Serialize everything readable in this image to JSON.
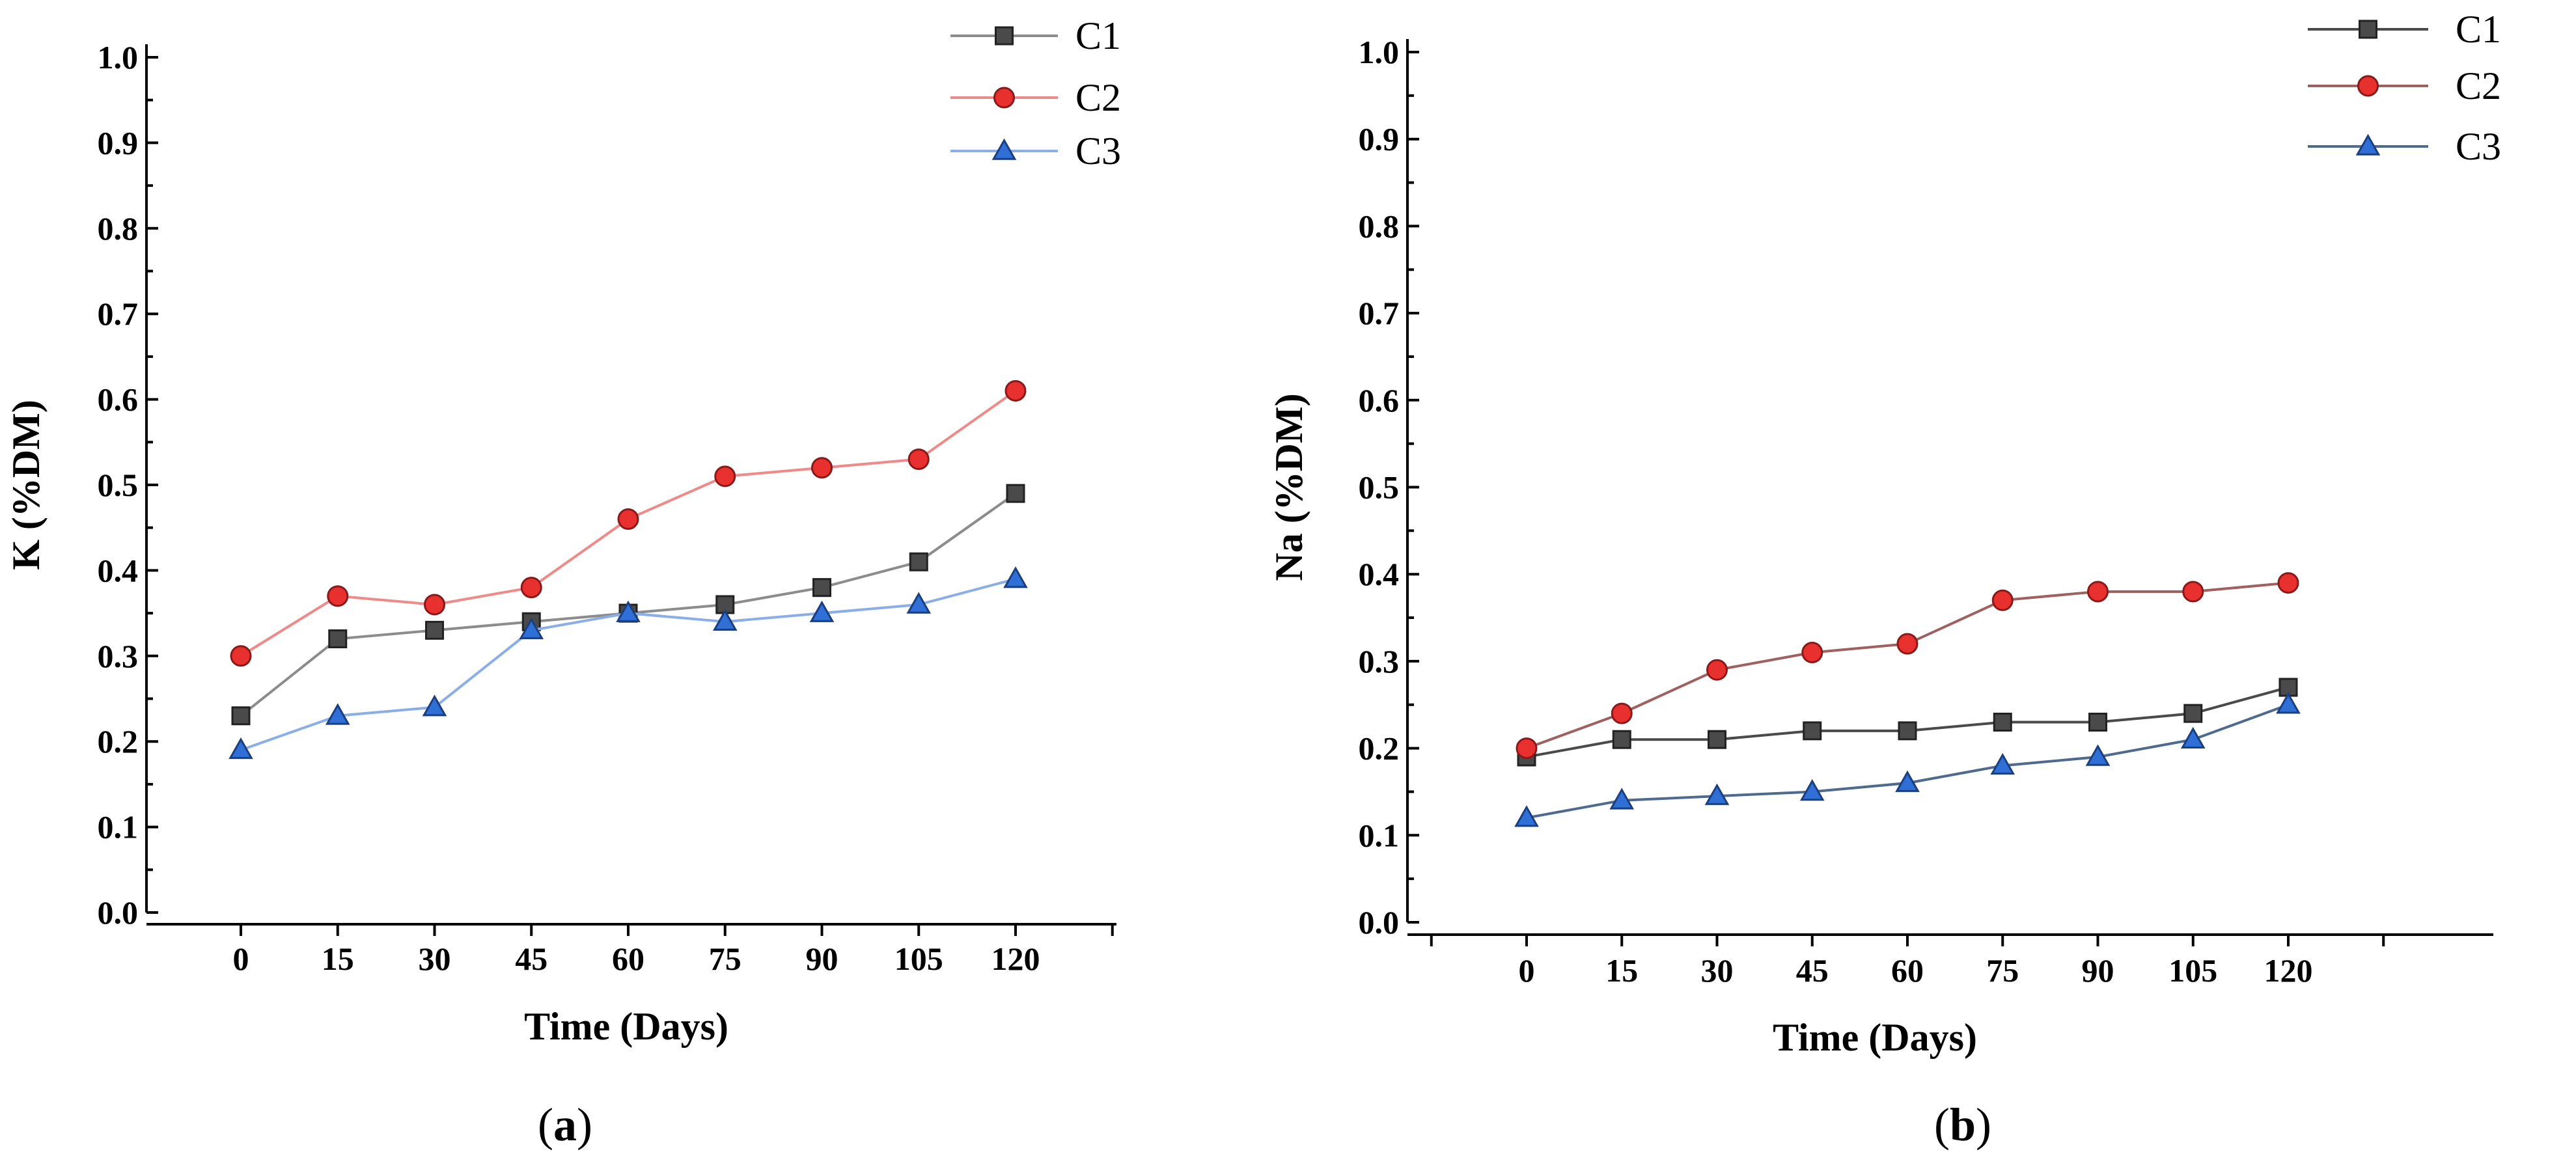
{
  "chart_data": [
    {
      "type": "line",
      "panel": "(a)",
      "panel_letter": "a",
      "xlabel": "Time (Days)",
      "ylabel": "K (%DM)",
      "x": [
        0,
        15,
        30,
        45,
        60,
        75,
        90,
        105,
        120
      ],
      "ylim": [
        0.0,
        1.0
      ],
      "yticks": [
        "0.0",
        "0.1",
        "0.2",
        "0.3",
        "0.4",
        "0.5",
        "0.6",
        "0.7",
        "0.8",
        "0.9",
        "1.0"
      ],
      "legend_position": "top-right",
      "grid": false,
      "series": [
        {
          "name": "C1",
          "marker": "square",
          "color": "#4a4a4a",
          "line_color": "#8c8c8c",
          "values": [
            0.23,
            0.32,
            0.33,
            0.34,
            0.35,
            0.36,
            0.38,
            0.41,
            0.49
          ]
        },
        {
          "name": "C2",
          "marker": "circle",
          "color": "#e8312f",
          "line_color": "#f08a88",
          "values": [
            0.3,
            0.37,
            0.36,
            0.38,
            0.46,
            0.51,
            0.52,
            0.53,
            0.61
          ]
        },
        {
          "name": "C3",
          "marker": "triangle",
          "color": "#2f6fd6",
          "line_color": "#8aaee8",
          "values": [
            0.19,
            0.23,
            0.24,
            0.33,
            0.35,
            0.34,
            0.35,
            0.36,
            0.39
          ]
        }
      ]
    },
    {
      "type": "line",
      "panel": "(b)",
      "panel_letter": "b",
      "xlabel": "Time (Days)",
      "ylabel": "Na (%DM)",
      "x": [
        0,
        15,
        30,
        45,
        60,
        75,
        90,
        105,
        120
      ],
      "ylim": [
        0.0,
        1.0
      ],
      "yticks": [
        "0.0",
        "0.1",
        "0.2",
        "0.3",
        "0.4",
        "0.5",
        "0.6",
        "0.7",
        "0.8",
        "0.9",
        "1.0"
      ],
      "legend_position": "top-right",
      "grid": false,
      "series": [
        {
          "name": "C1",
          "marker": "square",
          "color": "#4a4a4a",
          "line_color": "#4a4a4a",
          "values": [
            0.19,
            0.21,
            0.21,
            0.22,
            0.22,
            0.23,
            0.23,
            0.24,
            0.27
          ]
        },
        {
          "name": "C2",
          "marker": "circle",
          "color": "#e8312f",
          "line_color": "#a06060",
          "values": [
            0.2,
            0.24,
            0.29,
            0.31,
            0.32,
            0.37,
            0.38,
            0.38,
            0.39
          ]
        },
        {
          "name": "C3",
          "marker": "triangle",
          "color": "#2f6fd6",
          "line_color": "#4f6a8f",
          "values": [
            0.12,
            0.14,
            0.145,
            0.15,
            0.16,
            0.18,
            0.19,
            0.21,
            0.25
          ]
        }
      ]
    }
  ]
}
